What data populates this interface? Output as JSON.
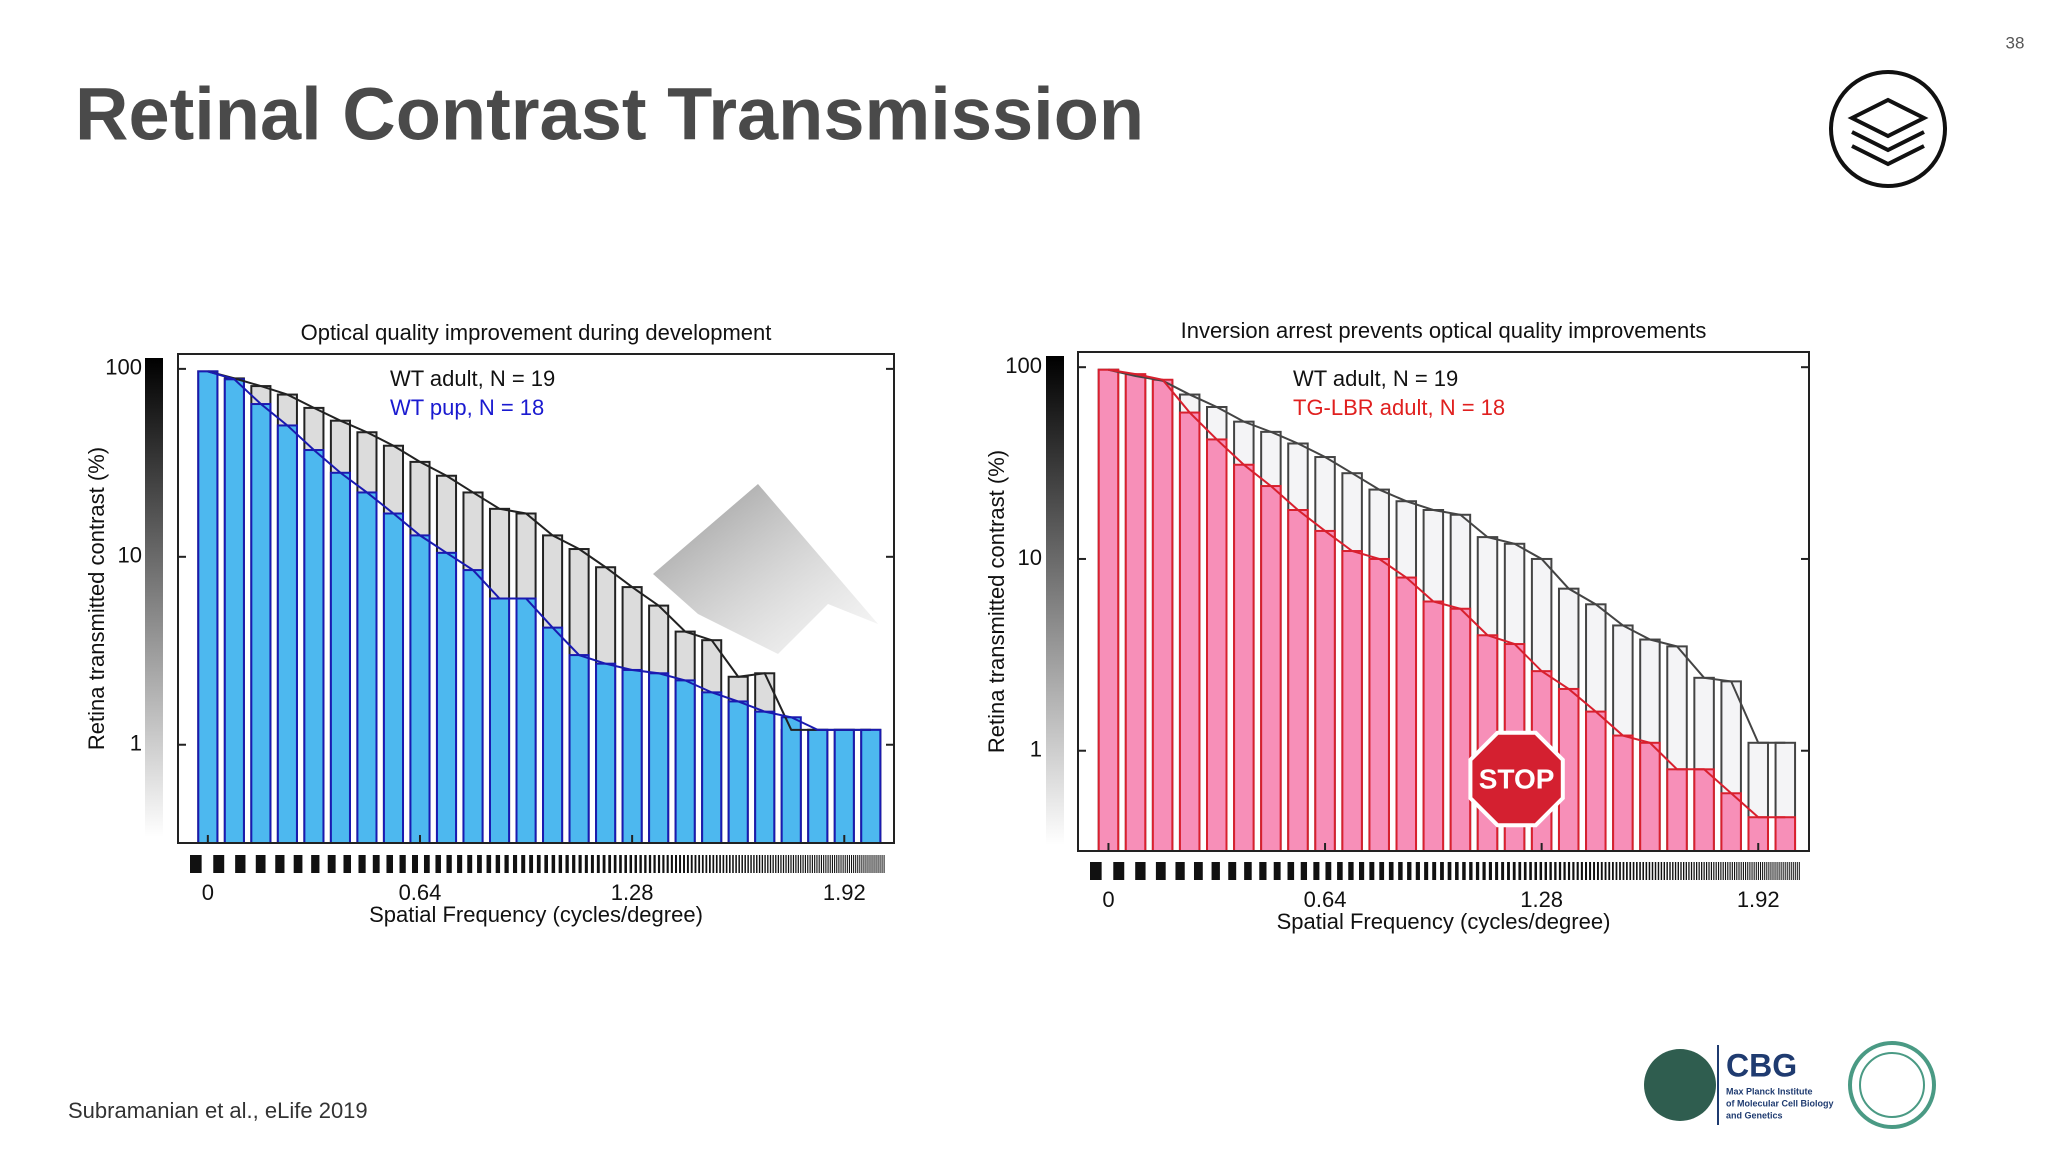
{
  "slide": {
    "title": "Retinal Contrast Transmission",
    "page_number": "38",
    "citation": "Subramanian et al., eLife 2019",
    "logo_text": "CBG",
    "logo_subtext": [
      "Max Planck Institute",
      "of Molecular Cell Biology",
      "and Genetics"
    ]
  },
  "chart_data": [
    {
      "type": "bar",
      "title": "Optical quality improvement during development",
      "x_label": "Spatial Frequency (cycles/degree)",
      "y_label": "Retina transmitted contrast (%)",
      "log_scale": true,
      "x": [
        0,
        0.08,
        0.16,
        0.24,
        0.32,
        0.4,
        0.48,
        0.56,
        0.64,
        0.72,
        0.8,
        0.88,
        0.96,
        1.04,
        1.12,
        1.2,
        1.28,
        1.36,
        1.44,
        1.52,
        1.6,
        1.68,
        1.76,
        1.84,
        1.92,
        2.0
      ],
      "xlim": [
        -0.09,
        2.07
      ],
      "xticks": [
        0,
        0.64,
        1.28,
        1.92
      ],
      "ylim": [
        0.3,
        120
      ],
      "yticks": [
        1,
        10,
        100
      ],
      "series": [
        {
          "name": "WT adult, N = 19",
          "color": "#dcdcdc",
          "edge": "#222222",
          "values": [
            97,
            89,
            81,
            73,
            62,
            53,
            46,
            39,
            32,
            27,
            22,
            18,
            17,
            13,
            11,
            8.8,
            6.9,
            5.5,
            4.0,
            3.6,
            2.3,
            2.4,
            1.2,
            1.2,
            1.2,
            1.2
          ]
        },
        {
          "name": "WT pup, N = 18",
          "color": "#4db8ef",
          "edge": "#1a1ab0",
          "values": [
            97,
            88,
            65,
            50,
            37,
            28,
            22,
            17,
            13,
            10.5,
            8.5,
            6,
            6,
            4.2,
            3.0,
            2.7,
            2.5,
            2.4,
            2.2,
            1.9,
            1.7,
            1.5,
            1.4,
            1.2,
            1.2,
            1.2
          ]
        }
      ]
    },
    {
      "type": "bar",
      "title": "Inversion arrest prevents optical quality improvements",
      "x_label": "Spatial Frequency (cycles/degree)",
      "y_label": "Retina transmitted contrast (%)",
      "annotation": "STOP",
      "log_scale": true,
      "x": [
        0,
        0.08,
        0.16,
        0.24,
        0.32,
        0.4,
        0.48,
        0.56,
        0.64,
        0.72,
        0.8,
        0.88,
        0.96,
        1.04,
        1.12,
        1.2,
        1.28,
        1.36,
        1.44,
        1.52,
        1.6,
        1.68,
        1.76,
        1.84,
        1.92,
        2.0
      ],
      "xlim": [
        -0.09,
        2.07
      ],
      "xticks": [
        0,
        0.64,
        1.28,
        1.92
      ],
      "ylim": [
        0.3,
        120
      ],
      "yticks": [
        1,
        10,
        100
      ],
      "series": [
        {
          "name": "WT adult, N = 19",
          "color": "#f4f4f6",
          "edge": "#444444",
          "values": [
            97,
            90,
            85,
            72,
            62,
            52,
            46,
            40,
            34,
            28,
            23,
            20,
            18,
            17,
            13,
            12,
            10,
            7,
            5.8,
            4.5,
            3.8,
            3.5,
            2.4,
            2.3,
            1.1,
            1.1
          ]
        },
        {
          "name": "TG-LBR adult, N = 18",
          "color": "#f78fb8",
          "edge": "#d8202e",
          "values": [
            97,
            92,
            86,
            58,
            42,
            31,
            24,
            18,
            14,
            11,
            10,
            8,
            6,
            5.5,
            4,
            3.6,
            2.6,
            2.1,
            1.6,
            1.2,
            1.1,
            0.8,
            0.8,
            0.6,
            0.45,
            0.45
          ]
        }
      ]
    }
  ]
}
